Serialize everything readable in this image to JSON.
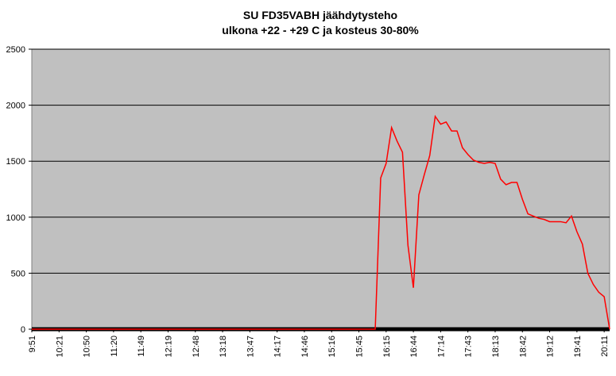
{
  "chart_data": {
    "type": "line",
    "title": "SU FD35VABH jäähdytysteho",
    "subtitle": "ulkona +22 - +29 C ja kosteus 30-80%",
    "categories": [
      "9:51",
      null,
      null,
      null,
      null,
      "10:21",
      null,
      null,
      null,
      null,
      "10:50",
      null,
      null,
      null,
      null,
      "11:20",
      null,
      null,
      null,
      null,
      "11:49",
      null,
      null,
      null,
      null,
      "12:19",
      null,
      null,
      null,
      null,
      "12:48",
      null,
      null,
      null,
      null,
      "13:18",
      null,
      null,
      null,
      null,
      "13:47",
      null,
      null,
      null,
      null,
      "14:17",
      null,
      null,
      null,
      null,
      "14:46",
      null,
      null,
      null,
      null,
      "15:16",
      null,
      null,
      null,
      null,
      "15:45",
      null,
      null,
      null,
      null,
      "16:15",
      null,
      null,
      null,
      null,
      "16:44",
      null,
      null,
      null,
      null,
      "17:14",
      null,
      null,
      null,
      null,
      "17:43",
      null,
      null,
      null,
      null,
      "18:13",
      null,
      null,
      null,
      null,
      "18:42",
      null,
      null,
      null,
      null,
      "19:12",
      null,
      null,
      null,
      null,
      "19:41",
      null,
      null,
      null,
      null,
      "20:11",
      null
    ],
    "series": [
      {
        "name": "jäähdytysteho",
        "color": "#ff0000",
        "values": [
          0,
          0,
          0,
          0,
          0,
          0,
          0,
          0,
          0,
          0,
          0,
          0,
          0,
          0,
          0,
          0,
          0,
          0,
          0,
          0,
          0,
          0,
          0,
          0,
          0,
          0,
          0,
          0,
          0,
          0,
          0,
          0,
          0,
          0,
          0,
          0,
          0,
          0,
          0,
          0,
          0,
          0,
          0,
          0,
          0,
          0,
          0,
          0,
          0,
          0,
          0,
          0,
          0,
          0,
          0,
          0,
          0,
          0,
          0,
          0,
          0,
          0,
          0,
          0,
          1350,
          1480,
          1800,
          1680,
          1580,
          750,
          370,
          1200,
          1380,
          1550,
          1900,
          1830,
          1850,
          1770,
          1770,
          1620,
          1560,
          1510,
          1490,
          1480,
          1490,
          1480,
          1340,
          1290,
          1310,
          1310,
          1160,
          1030,
          1010,
          990,
          980,
          960,
          960,
          960,
          950,
          1010,
          870,
          760,
          500,
          400,
          330,
          290,
          0
        ]
      }
    ],
    "ylim": [
      0,
      2500
    ],
    "yticks": [
      0,
      500,
      1000,
      1500,
      2000,
      2500
    ],
    "grid": true,
    "plot_background": "#c0c0c0"
  }
}
